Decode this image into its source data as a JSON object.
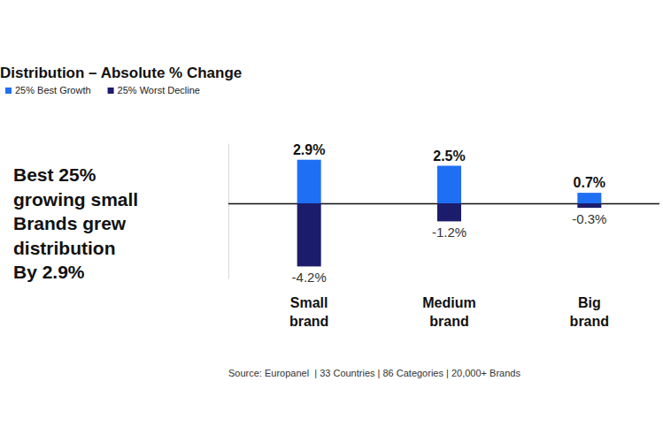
{
  "chart_data": {
    "type": "bar",
    "title": "Distribution – Absolute % Change",
    "categories": [
      "Small brand",
      "Medium brand",
      "Big brand"
    ],
    "series": [
      {
        "name": "25% Best Growth",
        "color": "#1f6ff5",
        "values": [
          2.9,
          2.5,
          0.7
        ],
        "value_labels": [
          "2.9%",
          "2.5%",
          "0.7%"
        ]
      },
      {
        "name": "25% Worst Decline",
        "color": "#1b1c6b",
        "values": [
          -4.2,
          -1.2,
          -0.3
        ],
        "value_labels": [
          "-4.2%",
          "-1.2%",
          "-0.3%"
        ]
      }
    ],
    "stacked": true,
    "data_labels": true,
    "legend": "top-left",
    "grid": false,
    "tick_labels": "x",
    "ylim": [
      -5,
      4
    ],
    "yticks": [
      0
    ],
    "annotation": [
      "Best 25%",
      "growing small",
      "Brands grew",
      "distribution",
      "By 2.9%"
    ],
    "source": "Source: Europanel  | 33 Countries | 86 Categories | 20,000+ Brands"
  }
}
